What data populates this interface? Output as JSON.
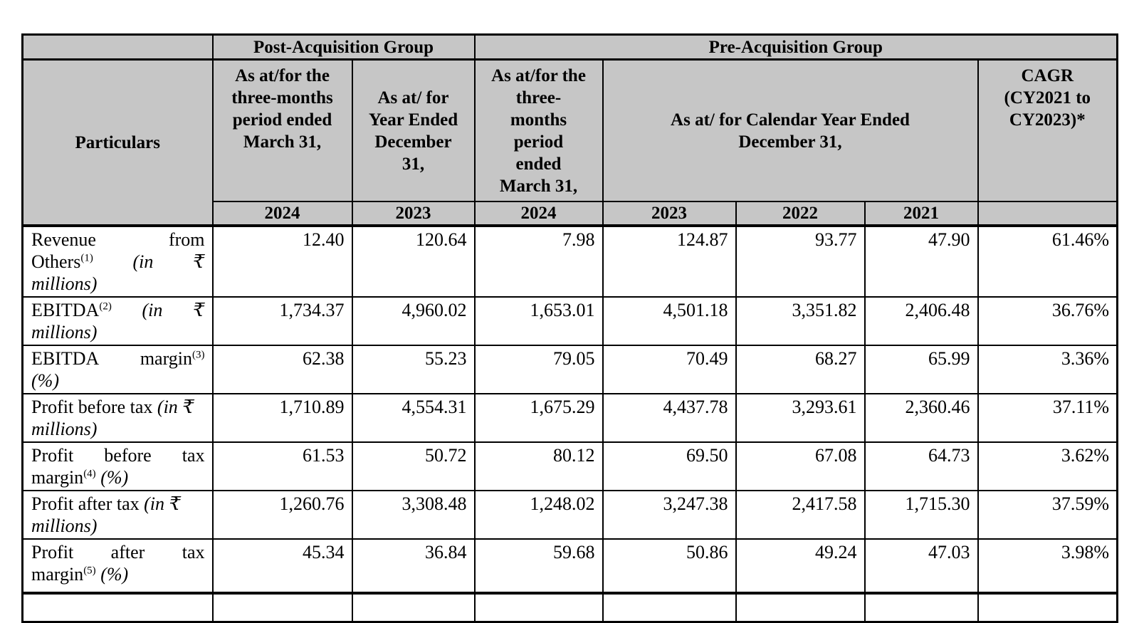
{
  "table": {
    "group_headers": {
      "corner": "",
      "post": "Post-Acquisition Group",
      "pre": "Pre-Acquisition Group"
    },
    "period_headers": {
      "particulars": "Particulars",
      "post_3m": "As at/for the\nthree-months\nperiod ended\nMarch 31,",
      "post_year": "As at/ for\nYear Ended\nDecember\n31,",
      "pre_3m": "As at/for the\nthree-\nmonths\nperiod\nended\nMarch 31,",
      "pre_cy": "As at/ for Calendar Year Ended\nDecember 31,",
      "cagr": "CAGR\n(CY2021 to\nCY2023)*"
    },
    "years": [
      "2024",
      "2023",
      "2024",
      "2023",
      "2022",
      "2021",
      ""
    ],
    "rows": [
      {
        "name": "revenue-from-others",
        "label_lines": [
          {
            "justify": true,
            "segments": [
              {
                "text": "Revenue"
              },
              {
                "text": "from"
              }
            ]
          },
          {
            "justify": true,
            "segments": [
              {
                "text": "Others",
                "sup": "(1)"
              },
              {
                "text": "(in",
                "italic": true
              },
              {
                "text": "₹",
                "italic": true
              }
            ]
          },
          {
            "justify": false,
            "segments": [
              {
                "text": "millions)",
                "italic": true
              }
            ]
          }
        ],
        "values": [
          "12.40",
          "120.64",
          "7.98",
          "124.87",
          "93.77",
          "47.90",
          "61.46%"
        ]
      },
      {
        "name": "ebitda",
        "label_lines": [
          {
            "justify": true,
            "segments": [
              {
                "text": "EBITDA",
                "sup": "(2)"
              },
              {
                "text": "(in",
                "italic": true
              },
              {
                "text": "₹",
                "italic": true
              }
            ]
          },
          {
            "justify": false,
            "segments": [
              {
                "text": "millions)",
                "italic": true
              }
            ]
          }
        ],
        "values": [
          "1,734.37",
          "4,960.02",
          "1,653.01",
          "4,501.18",
          "3,351.82",
          "2,406.48",
          "36.76%"
        ]
      },
      {
        "name": "ebitda-margin",
        "label_lines": [
          {
            "justify": true,
            "segments": [
              {
                "text": "EBITDA"
              },
              {
                "text": "margin",
                "sup": "(3)"
              }
            ]
          },
          {
            "justify": false,
            "segments": [
              {
                "text": "(%)",
                "italic": true
              }
            ]
          }
        ],
        "values": [
          "62.38",
          "55.23",
          "79.05",
          "70.49",
          "68.27",
          "65.99",
          "3.36%"
        ]
      },
      {
        "name": "profit-before-tax",
        "label_lines": [
          {
            "justify": false,
            "segments": [
              {
                "text": "Profit"
              },
              {
                "text": "before"
              },
              {
                "text": "tax"
              },
              {
                "text": "(in",
                "italic": true
              },
              {
                "text": "₹",
                "italic": true
              }
            ]
          },
          {
            "justify": false,
            "segments": [
              {
                "text": "millions)",
                "italic": true
              }
            ]
          }
        ],
        "values": [
          "1,710.89",
          "4,554.31",
          "1,675.29",
          "4,437.78",
          "3,293.61",
          "2,360.46",
          "37.11%"
        ]
      },
      {
        "name": "profit-before-tax-margin",
        "label_lines": [
          {
            "justify": true,
            "segments": [
              {
                "text": "Profit"
              },
              {
                "text": "before"
              },
              {
                "text": "tax"
              }
            ]
          },
          {
            "justify": false,
            "segments": [
              {
                "text": "margin",
                "sup": "(4)"
              },
              {
                "text": "(%)",
                "italic": true
              }
            ]
          }
        ],
        "values": [
          "61.53",
          "50.72",
          "80.12",
          "69.50",
          "67.08",
          "64.73",
          "3.62%"
        ]
      },
      {
        "name": "profit-after-tax",
        "label_lines": [
          {
            "justify": false,
            "segments": [
              {
                "text": "Profit"
              },
              {
                "text": "after"
              },
              {
                "text": "tax"
              },
              {
                "text": "(in",
                "italic": true
              },
              {
                "text": "₹",
                "italic": true
              }
            ]
          },
          {
            "justify": false,
            "segments": [
              {
                "text": "millions)",
                "italic": true
              }
            ]
          }
        ],
        "values": [
          "1,260.76",
          "3,308.48",
          "1,248.02",
          "3,247.38",
          "2,417.58",
          "1,715.30",
          "37.59%"
        ]
      },
      {
        "name": "profit-after-tax-margin",
        "label_lines": [
          {
            "justify": true,
            "segments": [
              {
                "text": "Profit"
              },
              {
                "text": "after"
              },
              {
                "text": "tax"
              }
            ]
          },
          {
            "justify": false,
            "segments": [
              {
                "text": "margin",
                "sup": "(5)"
              },
              {
                "text": "(%)",
                "italic": true
              }
            ]
          }
        ],
        "values": [
          "45.34",
          "36.84",
          "59.68",
          "50.86",
          "49.24",
          "47.03",
          "3.98%"
        ]
      }
    ]
  }
}
